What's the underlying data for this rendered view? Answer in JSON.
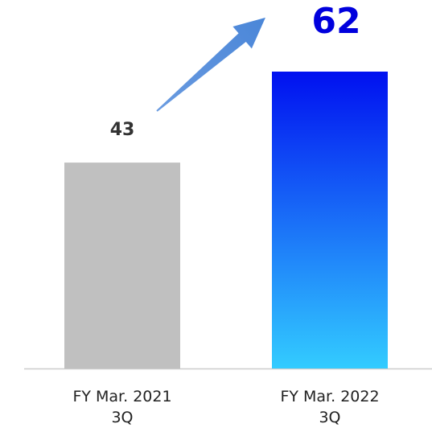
{
  "chart_data": {
    "type": "bar",
    "categories": [
      "FY Mar. 2021\n3Q",
      "FY Mar. 2022\n3Q"
    ],
    "values": [
      43,
      62
    ],
    "colors": [
      [
        "#c0c0c0",
        "#c0c0c0"
      ],
      [
        "#0010f0",
        "#33ccff"
      ]
    ],
    "value_label_colors": [
      "#333333",
      "#0000dd"
    ],
    "ylim": [
      0,
      62
    ]
  }
}
